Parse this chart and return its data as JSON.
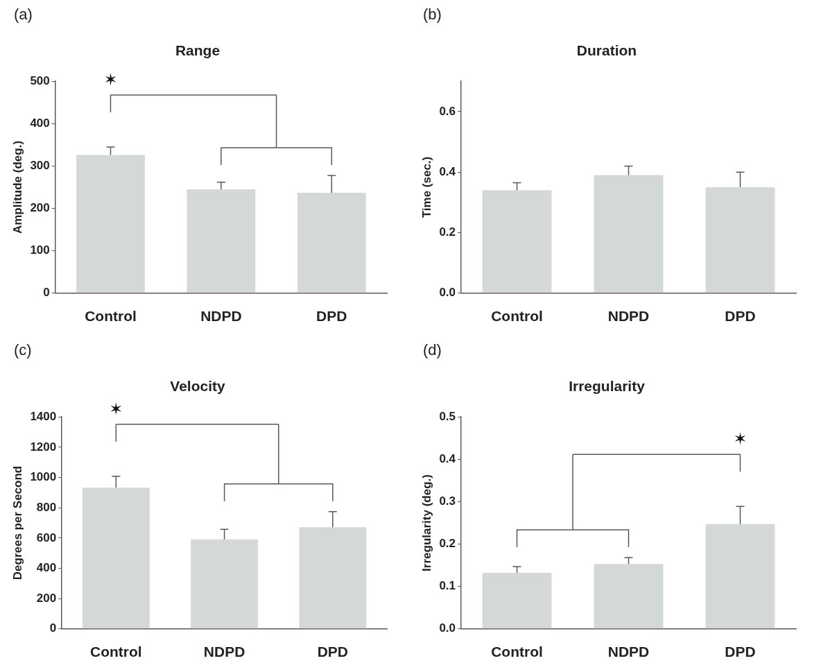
{
  "chart_data": [
    {
      "type": "bar",
      "title": "Range",
      "ylabel": "Amplitude (deg.)",
      "categories": [
        "Control",
        "NDPD",
        "DPD"
      ],
      "values": [
        326,
        245,
        237
      ],
      "errors": [
        19,
        17,
        41
      ],
      "color": "#d5d9d5",
      "ylim": [
        0,
        500
      ],
      "yticks": [
        0,
        100,
        200,
        300,
        400,
        500
      ],
      "annotations": [
        "(a)",
        "✶"
      ]
    },
    {
      "type": "bar",
      "title": "Duration",
      "ylabel": "Time (sec.)",
      "categories": [
        "Control",
        "NDPD",
        "DPD"
      ],
      "values": [
        0.34,
        0.39,
        0.35
      ],
      "errors": [
        0.025,
        0.03,
        0.05
      ],
      "color": "#d5d9d5",
      "ylim": [
        0,
        0.7
      ],
      "yticks": [
        {
          "value": 0,
          "label": "0.0"
        },
        0.2,
        0.4,
        0.6
      ],
      "annotations": [
        "(b)"
      ]
    },
    {
      "type": "bar",
      "title": "Velocity",
      "ylabel": "Degrees per Second",
      "categories": [
        "Control",
        "NDPD",
        "DPD"
      ],
      "values": [
        933,
        591,
        671
      ],
      "errors": [
        75,
        67,
        103
      ],
      "color": "#d5d9d5",
      "ylim": [
        0,
        1400
      ],
      "yticks": [
        0,
        200,
        400,
        600,
        800,
        1000,
        1200,
        1400
      ],
      "annotations": [
        "(c)",
        "✶"
      ]
    },
    {
      "type": "bar",
      "title": "Irregularity",
      "ylabel": "Irregularity (deg.)",
      "categories": [
        "Control",
        "NDPD",
        "DPD"
      ],
      "values": [
        0.132,
        0.153,
        0.247
      ],
      "errors": [
        0.015,
        0.015,
        0.042
      ],
      "color": "#d5d9d5",
      "ylim": [
        0,
        0.5
      ],
      "yticks": [
        {
          "value": 0,
          "label": "0.0"
        },
        0.1,
        0.2,
        0.3,
        0.4,
        0.5
      ],
      "annotations": [
        "(d)",
        "✶"
      ]
    }
  ]
}
